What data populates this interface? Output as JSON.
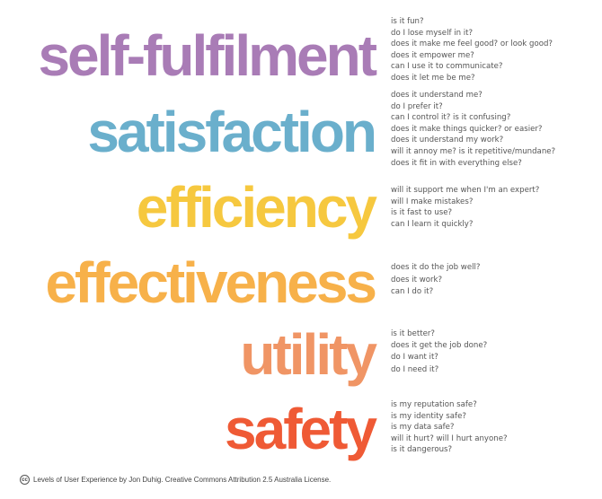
{
  "levels": [
    {
      "label": "self-fulfilment",
      "color": "#a97cb6",
      "questions": [
        "is it fun?",
        "do I lose myself in it?",
        "does it make me feel good?   or look good?",
        "does it empower me?",
        "can I use it to communicate?",
        "does it let me be me?"
      ]
    },
    {
      "label": "satisfaction",
      "color": "#6aafcc",
      "questions": [
        "does it understand me?",
        "do I prefer it?",
        "can I control it?   is it confusing?",
        "does it make things quicker?   or easier?",
        "does it understand my work?",
        "will it annoy me?     is it repetitive/mundane?",
        "does it fit in with everything else?"
      ]
    },
    {
      "label": "efficiency",
      "color": "#f6c83f",
      "questions": [
        "will it support me when I'm an expert?",
        "will I make mistakes?",
        "is it fast to use?",
        "can I learn it quickly?"
      ]
    },
    {
      "label": "effectiveness",
      "color": "#f7b14a",
      "questions": [
        "does it do the job well?",
        "does it work?",
        "can I do it?"
      ]
    },
    {
      "label": "utility",
      "color": "#f09565",
      "questions": [
        "is it better?",
        "does it get the job done?",
        "do I want it?",
        "do I need it?"
      ]
    },
    {
      "label": "safety",
      "color": "#ef5a35",
      "questions": [
        "is my reputation safe?",
        "is my identity safe?",
        "is my data safe?",
        "will it hurt?   will I hurt anyone?",
        "is it dangerous?"
      ]
    }
  ],
  "footer": {
    "icon": "creative-commons-icon",
    "icon_text": "cc",
    "text": "Levels of User Experience by Jon Duhig. Creative Commons Attribution 2.5 Australia License."
  }
}
